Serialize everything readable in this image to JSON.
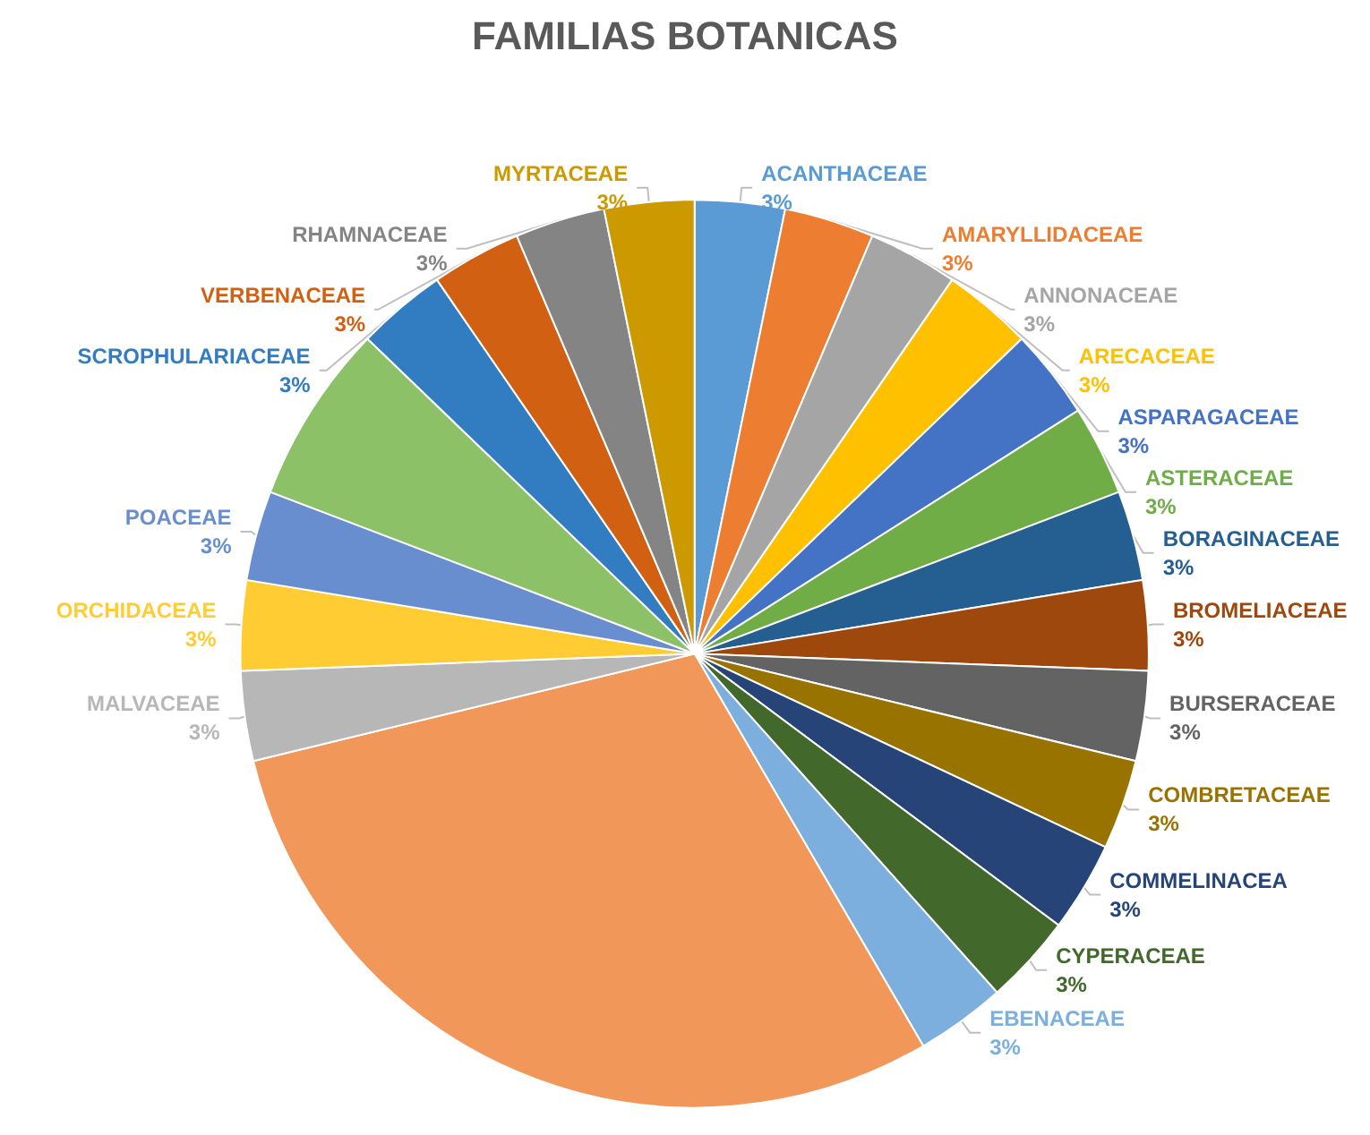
{
  "chart_data": {
    "type": "pie",
    "title": "FAMILIAS BOTANICAS",
    "categories": [
      "ACANTHACEAE",
      "AMARYLLIDACEAE",
      "ANNONACEAE",
      "ARECACEAE",
      "ASPARAGACEAE",
      "ASTERACEAE",
      "BORAGINACEAE",
      "BROMELIACEAE",
      "BURSERACEAE",
      "COMBRETACEAE",
      "COMMELINACEA",
      "CYPERACEAE",
      "EBENACEAE",
      null,
      "MALVACEAE",
      "ORCHIDACEAE",
      "POACEAE",
      null,
      "SCROPHULARIACEAE",
      "VERBENACEAE",
      "RHAMNACEAE",
      "MYRTACEAE"
    ],
    "values": [
      3.2,
      3.2,
      3.2,
      3.2,
      3.2,
      3.2,
      3.2,
      3.2,
      3.2,
      3.2,
      3.2,
      3.2,
      3.2,
      29.6,
      3.2,
      3.2,
      3.2,
      6.4,
      3.2,
      3.2,
      3.2,
      3.2
    ],
    "value_labels": [
      "3%",
      "3%",
      "3%",
      "3%",
      "3%",
      "3%",
      "3%",
      "3%",
      "3%",
      "3%",
      "3%",
      "3%",
      "3%",
      null,
      "3%",
      "3%",
      "3%",
      null,
      "3%",
      "3%",
      "3%",
      "3%"
    ],
    "colors": [
      "#5b9bd5",
      "#ed7d31",
      "#a5a5a5",
      "#ffc000",
      "#4472c4",
      "#70ad47",
      "#255e91",
      "#9e480e",
      "#636363",
      "#997300",
      "#264478",
      "#43682b",
      "#7cafdd",
      "#f1975a",
      "#b7b7b7",
      "#ffcd33",
      "#698ed0",
      "#8cc168",
      "#327dc2",
      "#d26012",
      "#848484",
      "#cc9a00"
    ]
  }
}
